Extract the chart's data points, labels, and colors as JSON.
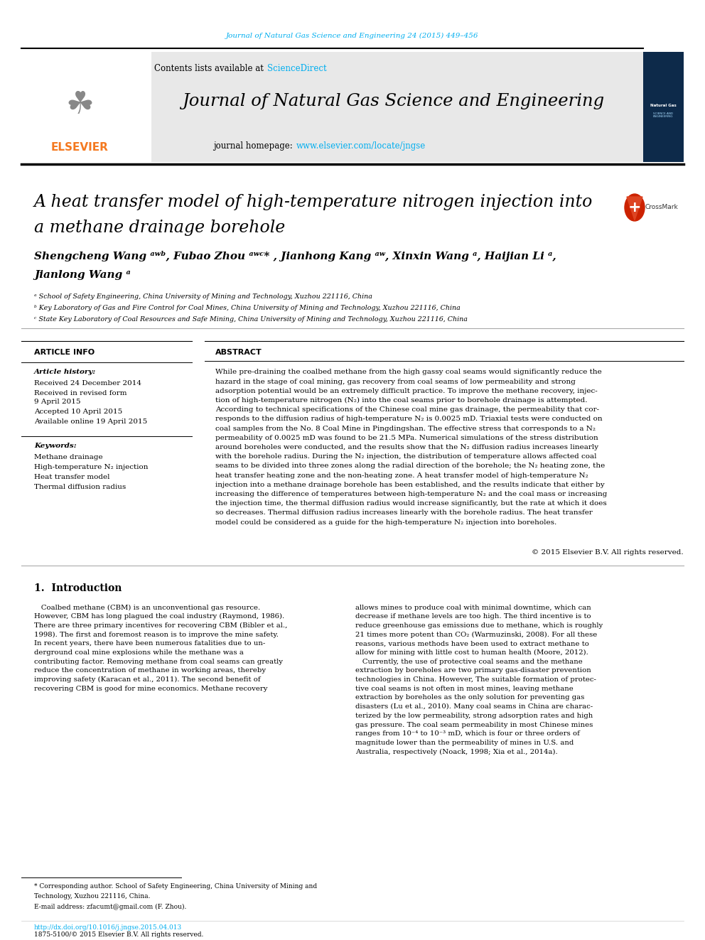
{
  "bg_color": "#ffffff",
  "top_journal_ref": "Journal of Natural Gas Science and Engineering 24 (2015) 449–456",
  "top_journal_ref_color": "#00AEEF",
  "journal_header_bg": "#e8e8e8",
  "journal_name": "Journal of Natural Gas Science and Engineering",
  "sciencedirect_color": "#00AEEF",
  "homepage_link_color": "#00AEEF",
  "elsevier_color": "#F47920",
  "article_info_title": "ARTICLE INFO",
  "abstract_title": "ABSTRACT",
  "article_history_label": "Article history:",
  "received1": "Received 24 December 2014",
  "received2": "Received in revised form",
  "date2": "9 April 2015",
  "accepted": "Accepted 10 April 2015",
  "available": "Available online 19 April 2015",
  "keywords_label": "Keywords:",
  "kw1": "Methane drainage",
  "kw2": "High-temperature N₂ injection",
  "kw3": "Heat transfer model",
  "kw4": "Thermal diffusion radius",
  "abstract_text": "While pre-draining the coalbed methane from the high gassy coal seams would significantly reduce the\nhazard in the stage of coal mining, gas recovery from coal seams of low permeability and strong\nadsorption potential would be an extremely difficult practice. To improve the methane recovery, injec-\ntion of high-temperature nitrogen (N₂) into the coal seams prior to borehole drainage is attempted.\nAccording to technical specifications of the Chinese coal mine gas drainage, the permeability that cor-\nresponds to the diffusion radius of high-temperature N₂ is 0.0025 mD. Triaxial tests were conducted on\ncoal samples from the No. 8 Coal Mine in Pingdingshan. The effective stress that corresponds to a N₂\npermeability of 0.0025 mD was found to be 21.5 MPa. Numerical simulations of the stress distribution\naround boreholes were conducted, and the results show that the N₂ diffusion radius increases linearly\nwith the borehole radius. During the N₂ injection, the distribution of temperature allows affected coal\nseams to be divided into three zones along the radial direction of the borehole; the N₂ heating zone, the\nheat transfer heating zone and the non-heating zone. A heat transfer model of high-temperature N₂\ninjection into a methane drainage borehole has been established, and the results indicate that either by\nincreasing the difference of temperatures between high-temperature N₂ and the coal mass or increasing\nthe injection time, the thermal diffusion radius would increase significantly, but the rate at which it does\nso decreases. Thermal diffusion radius increases linearly with the borehole radius. The heat transfer\nmodel could be considered as a guide for the high-temperature N₂ injection into boreholes.",
  "copyright": "© 2015 Elsevier B.V. All rights reserved.",
  "intro_title": "1.  Introduction",
  "intro_col1": "   Coalbed methane (CBM) is an unconventional gas resource.\nHowever, CBM has long plagued the coal industry (Raymond, 1986).\nThere are three primary incentives for recovering CBM (Bibler et al.,\n1998). The first and foremost reason is to improve the mine safety.\nIn recent years, there have been numerous fatalities due to un-\nderground coal mine explosions while the methane was a\ncontributing factor. Removing methane from coal seams can greatly\nreduce the concentration of methane in working areas, thereby\nimproving safety (Karacan et al., 2011). The second benefit of\nrecovering CBM is good for mine economics. Methane recovery",
  "intro_col2": "allows mines to produce coal with minimal downtime, which can\ndecrease if methane levels are too high. The third incentive is to\nreduce greenhouse gas emissions due to methane, which is roughly\n21 times more potent than CO₂ (Warmuzinski, 2008). For all these\nreasons, various methods have been used to extract methane to\nallow for mining with little cost to human health (Moore, 2012).\n   Currently, the use of protective coal seams and the methane\nextraction by boreholes are two primary gas-disaster prevention\ntechnologies in China. However, The suitable formation of protec-\ntive coal seams is not often in most mines, leaving methane\nextraction by boreholes as the only solution for preventing gas\ndisasters (Lu et al., 2010). Many coal seams in China are charac-\nterized by the low permeability, strong adsorption rates and high\ngas pressure. The coal seam permeability in most Chinese mines\nranges from 10⁻⁴ to 10⁻³ mD, which is four or three orders of\nmagnitude lower than the permeability of mines in U.S. and\nAustralia, respectively (Noack, 1998; Xia et al., 2014a).",
  "footnote_line1": "* Corresponding author. School of Safety Engineering, China University of Mining and",
  "footnote_line2": "Technology, Xuzhou 221116, China.",
  "footnote_email": "E-mail address: zfacumt@gmail.com (F. Zhou).",
  "doi_text": "http://dx.doi.org/10.1016/j.jngse.2015.04.013",
  "issn_text": "1875-5100/© 2015 Elsevier B.V. All rights reserved.",
  "affil_a": "ᵃ School of Safety Engineering, China University of Mining and Technology, Xuzhou 221116, China",
  "affil_b": "ᵇ Key Laboratory of Gas and Fire Control for Coal Mines, China University of Mining and Technology, Xuzhou 221116, China",
  "affil_c": "ᶜ State Key Laboratory of Coal Resources and Safe Mining, China University of Mining and Technology, Xuzhou 221116, China"
}
